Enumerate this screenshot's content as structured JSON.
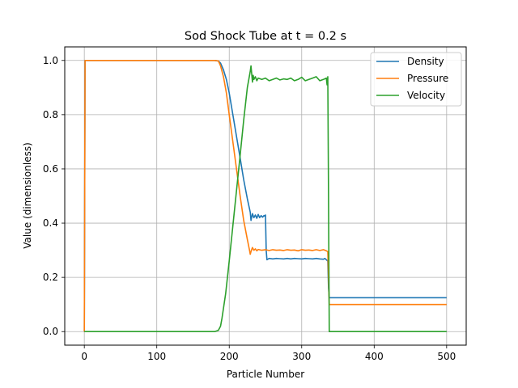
{
  "chart_data": {
    "type": "line",
    "title": "Sod Shock Tube at t = 0.2 s",
    "xlabel": "Particle Number",
    "ylabel": "Value (dimensionless)",
    "xlim": [
      -27,
      527
    ],
    "ylim": [
      -0.05,
      1.05
    ],
    "xticks": [
      0,
      100,
      200,
      300,
      400,
      500
    ],
    "yticks": [
      0.0,
      0.2,
      0.4,
      0.6,
      0.8,
      1.0
    ],
    "xtick_labels": [
      "0",
      "100",
      "200",
      "300",
      "400",
      "500"
    ],
    "ytick_labels": [
      "0.0",
      "0.2",
      "0.4",
      "0.6",
      "0.8",
      "1.0"
    ],
    "grid": true,
    "legend_position": "top-right",
    "series": [
      {
        "name": "Density",
        "color": "#1f77b4",
        "x": [
          0,
          1,
          2,
          100,
          180,
          185,
          188,
          192,
          196,
          200,
          205,
          210,
          215,
          220,
          225,
          229,
          230,
          232,
          234,
          236,
          238,
          240,
          242,
          244,
          246,
          248,
          249,
          250,
          251,
          252,
          255,
          260,
          265,
          270,
          275,
          280,
          285,
          290,
          295,
          300,
          305,
          310,
          315,
          320,
          325,
          330,
          332,
          334,
          336,
          337,
          338,
          340,
          400,
          500
        ],
        "y": [
          0.0,
          1.0,
          1.0,
          1.0,
          1.0,
          0.998,
          0.99,
          0.965,
          0.93,
          0.88,
          0.8,
          0.72,
          0.64,
          0.56,
          0.49,
          0.44,
          0.41,
          0.435,
          0.42,
          0.43,
          0.418,
          0.432,
          0.42,
          0.428,
          0.422,
          0.428,
          0.426,
          0.43,
          0.3,
          0.265,
          0.27,
          0.268,
          0.27,
          0.269,
          0.268,
          0.27,
          0.268,
          0.27,
          0.269,
          0.268,
          0.27,
          0.269,
          0.268,
          0.27,
          0.268,
          0.267,
          0.27,
          0.265,
          0.26,
          0.16,
          0.125,
          0.125,
          0.125,
          0.125
        ]
      },
      {
        "name": "Pressure",
        "color": "#ff7f0e",
        "x": [
          0,
          1,
          2,
          100,
          180,
          185,
          188,
          192,
          196,
          200,
          205,
          210,
          215,
          220,
          225,
          228,
          229,
          230,
          232,
          234,
          236,
          238,
          240,
          245,
          250,
          255,
          260,
          265,
          270,
          275,
          280,
          285,
          290,
          295,
          300,
          305,
          310,
          315,
          320,
          325,
          330,
          334,
          336,
          337,
          338,
          340,
          400,
          500
        ],
        "y": [
          0.0,
          1.0,
          1.0,
          1.0,
          1.0,
          0.998,
          0.98,
          0.94,
          0.88,
          0.8,
          0.7,
          0.6,
          0.5,
          0.41,
          0.34,
          0.3,
          0.285,
          0.295,
          0.31,
          0.3,
          0.305,
          0.298,
          0.303,
          0.3,
          0.302,
          0.299,
          0.302,
          0.3,
          0.301,
          0.299,
          0.302,
          0.3,
          0.301,
          0.298,
          0.302,
          0.3,
          0.301,
          0.299,
          0.302,
          0.299,
          0.302,
          0.298,
          0.295,
          0.2,
          0.1,
          0.1,
          0.1,
          0.1
        ]
      },
      {
        "name": "Velocity",
        "color": "#2ca02c",
        "x": [
          0,
          100,
          180,
          185,
          188,
          190,
          195,
          200,
          205,
          210,
          215,
          220,
          225,
          229,
          230,
          231,
          232,
          233,
          234,
          236,
          238,
          240,
          245,
          250,
          255,
          260,
          265,
          270,
          275,
          280,
          285,
          290,
          295,
          300,
          305,
          310,
          315,
          320,
          325,
          330,
          334,
          335,
          336,
          337,
          338,
          340,
          400,
          500
        ],
        "y": [
          0.0,
          0.0,
          0.0,
          0.005,
          0.02,
          0.05,
          0.14,
          0.26,
          0.39,
          0.52,
          0.65,
          0.78,
          0.9,
          0.96,
          0.98,
          0.95,
          0.92,
          0.945,
          0.93,
          0.94,
          0.925,
          0.935,
          0.93,
          0.935,
          0.925,
          0.93,
          0.935,
          0.928,
          0.932,
          0.93,
          0.935,
          0.925,
          0.93,
          0.938,
          0.925,
          0.93,
          0.935,
          0.94,
          0.925,
          0.93,
          0.935,
          0.91,
          0.94,
          0.5,
          0.0,
          0.0,
          0.0,
          0.0
        ]
      }
    ]
  }
}
